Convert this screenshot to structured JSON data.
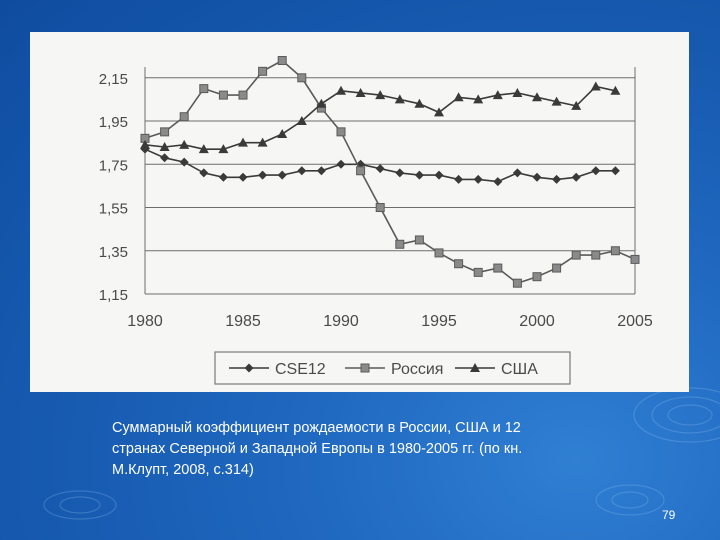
{
  "slide": {
    "caption_lines": [
      "Суммарный коэффициент рождаемости в России, США и 12",
      "странах Северной и Западной Европы в 1980-2005 гг. (по кн.",
      "М.Клупт, 2008, с.314)"
    ],
    "page_number": "79",
    "background_color": "#1a5fb4"
  },
  "chart_data": {
    "type": "line",
    "title": "",
    "xlabel": "",
    "ylabel": "",
    "xlim": [
      1980,
      2005
    ],
    "ylim": [
      1.15,
      2.2
    ],
    "x_ticks": [
      "1980",
      "1985",
      "1990",
      "1995",
      "2000",
      "2005"
    ],
    "y_ticks": [
      "2,15",
      "1,95",
      "1,75",
      "1,55",
      "1,35",
      "1,15"
    ],
    "grid": "horizontal",
    "legend_position": "bottom",
    "x": [
      1980,
      1981,
      1982,
      1983,
      1984,
      1985,
      1986,
      1987,
      1988,
      1989,
      1990,
      1991,
      1992,
      1993,
      1994,
      1995,
      1996,
      1997,
      1998,
      1999,
      2000,
      2001,
      2002,
      2003,
      2004,
      2005
    ],
    "series": [
      {
        "name": "CSE12",
        "marker": "diamond",
        "color": "#3a3a3a",
        "values": [
          1.82,
          1.78,
          1.76,
          1.71,
          1.69,
          1.69,
          1.7,
          1.7,
          1.72,
          1.72,
          1.75,
          1.75,
          1.73,
          1.71,
          1.7,
          1.7,
          1.68,
          1.68,
          1.67,
          1.71,
          1.69,
          1.68,
          1.69,
          1.72,
          1.72,
          null
        ]
      },
      {
        "name": "Россия",
        "marker": "square",
        "color": "#5a5a5a",
        "values": [
          1.87,
          1.9,
          1.97,
          2.1,
          2.07,
          2.07,
          2.18,
          2.23,
          2.15,
          2.01,
          1.9,
          1.72,
          1.55,
          1.38,
          1.4,
          1.34,
          1.29,
          1.25,
          1.27,
          1.2,
          1.23,
          1.27,
          1.33,
          1.33,
          1.35,
          1.31
        ]
      },
      {
        "name": "США",
        "marker": "triangle",
        "color": "#3a3a3a",
        "values": [
          1.84,
          1.83,
          1.84,
          1.82,
          1.82,
          1.85,
          1.85,
          1.89,
          1.95,
          2.03,
          2.09,
          2.08,
          2.07,
          2.05,
          2.03,
          1.99,
          2.06,
          2.05,
          2.07,
          2.08,
          2.06,
          2.04,
          2.02,
          2.11,
          2.09,
          null
        ]
      }
    ]
  }
}
